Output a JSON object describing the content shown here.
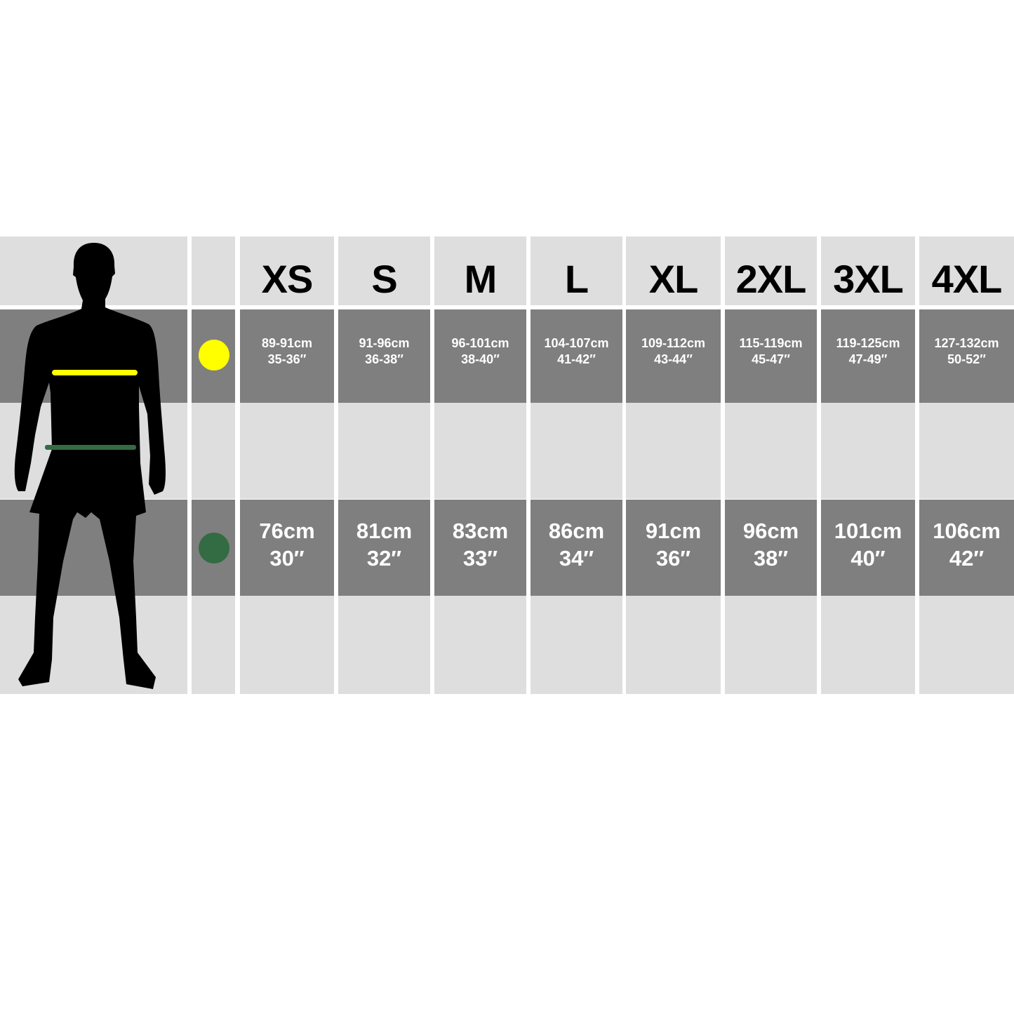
{
  "sizes": [
    "XS",
    "S",
    "M",
    "L",
    "XL",
    "2XL",
    "3XL",
    "4XL"
  ],
  "chest": {
    "marker_color": "#ffff00",
    "cm": [
      "89-91cm",
      "91-96cm",
      "96-101cm",
      "104-107cm",
      "109-112cm",
      "115-119cm",
      "119-125cm",
      "127-132cm"
    ],
    "inch": [
      "35-36″",
      "36-38″",
      "38-40″",
      "41-42″",
      "43-44″",
      "45-47″",
      "47-49″",
      "50-52″"
    ]
  },
  "waist": {
    "marker_color": "#336b43",
    "cm": [
      "76cm",
      "81cm",
      "83cm",
      "86cm",
      "91cm",
      "96cm",
      "101cm",
      "106cm"
    ],
    "inch": [
      "30″",
      "32″",
      "33″",
      "34″",
      "36″",
      "38″",
      "40″",
      "42″"
    ]
  },
  "colors": {
    "light_row": "#dedede",
    "dark_row": "#7f7f7f",
    "silhouette": "#000000"
  },
  "icons": {
    "figure": "male-body-silhouette",
    "chest_marker": "yellow-circle",
    "waist_marker": "green-circle"
  }
}
